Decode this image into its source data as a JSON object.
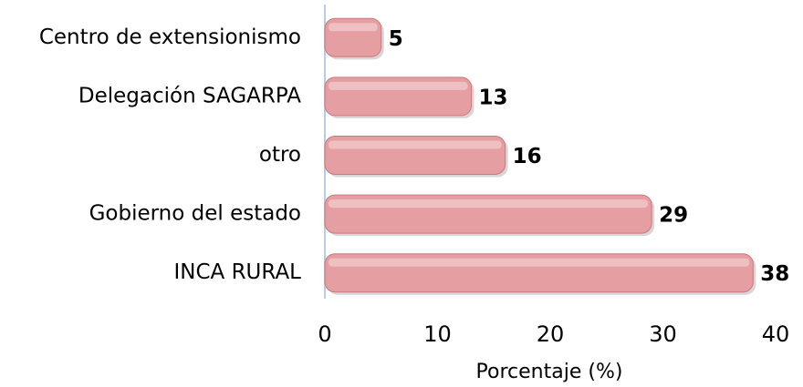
{
  "chart_data": {
    "type": "bar",
    "orientation": "horizontal",
    "categories": [
      "Centro de extensionismo",
      "Delegación SAGARPA",
      "otro",
      "Gobierno del estado",
      "INCA RURAL"
    ],
    "values": [
      5,
      13,
      16,
      29,
      38
    ],
    "color": "#e59ea1",
    "xlabel": "Porcentaje (%)",
    "xlim": [
      0,
      40
    ],
    "xticks": [
      0,
      10,
      20,
      30,
      40
    ],
    "grid": false
  }
}
